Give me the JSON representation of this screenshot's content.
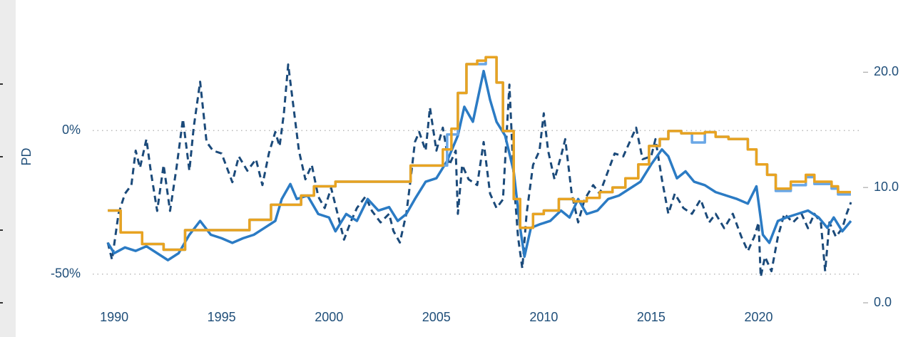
{
  "chart_data": {
    "type": "line",
    "ylabel": "PD",
    "xlim": [
      1989.0,
      2024.7
    ],
    "xticks": [
      1990,
      1995,
      2000,
      2005,
      2010,
      2015,
      2020
    ],
    "ylim": [
      -60,
      40
    ],
    "yticks": [
      {
        "value": 0,
        "label": "0%"
      },
      {
        "value": -50,
        "label": "-50%"
      }
    ],
    "y2lim": [
      0,
      24.9
    ],
    "y2ticks": [
      {
        "value": 0,
        "label": "0.0"
      },
      {
        "value": 10,
        "label": "10.0"
      },
      {
        "value": 20,
        "label": "20.0"
      }
    ],
    "grid": true,
    "series": [
      {
        "color": "#1b4a7a",
        "line_style": "dashed",
        "x": [
          1989.7,
          1989.9,
          1990.2,
          1990.5,
          1990.8,
          1991.0,
          1991.2,
          1991.5,
          1991.7,
          1992.0,
          1992.3,
          1992.6,
          1992.9,
          1993.2,
          1993.5,
          1993.7,
          1994.0,
          1994.3,
          1994.6,
          1995.0,
          1995.5,
          1995.8,
          1996.2,
          1996.6,
          1996.9,
          1997.2,
          1997.5,
          1997.7,
          1997.9,
          1998.1,
          1998.3,
          1998.6,
          1998.9,
          1999.2,
          1999.5,
          1999.8,
          2000.1,
          2000.4,
          2000.7,
          2001.0,
          2001.3,
          2001.7,
          2002.0,
          2002.4,
          2002.8,
          2003.0,
          2003.3,
          2003.6,
          2003.8,
          2004.0,
          2004.2,
          2004.5,
          2004.7,
          2005.0,
          2005.3,
          2005.6,
          2005.9,
          2006.0,
          2006.2,
          2006.5,
          2006.9,
          2007.2,
          2007.5,
          2007.8,
          2008.1,
          2008.4,
          2008.6,
          2008.8,
          2009.0,
          2009.2,
          2009.5,
          2009.8,
          2010.0,
          2010.2,
          2010.5,
          2010.8,
          2011.0,
          2011.3,
          2011.6,
          2011.9,
          2012.3,
          2012.6,
          2013.0,
          2013.3,
          2013.7,
          2014.0,
          2014.3,
          2014.6,
          2015.0,
          2015.2,
          2015.5,
          2015.8,
          2016.1,
          2016.5,
          2016.9,
          2017.3,
          2017.7,
          2018.0,
          2018.4,
          2018.8,
          2019.2,
          2019.5,
          2019.8,
          2020.0,
          2020.1,
          2020.3,
          2020.6,
          2020.9,
          2021.2,
          2021.6,
          2022.0,
          2022.3,
          2022.6,
          2022.9,
          2023.1,
          2023.3,
          2023.6,
          2023.9,
          2024.1,
          2024.3
        ],
        "values": [
          -39,
          -45,
          -29,
          -22,
          -19,
          -7,
          -13,
          -3,
          -14,
          -28,
          -12,
          -28,
          -13,
          4,
          -14,
          1,
          17,
          -4,
          -7,
          -8,
          -18,
          -9,
          -14,
          -10,
          -19,
          -8,
          -0.5,
          -5.5,
          6,
          23,
          11,
          -7,
          -17,
          -12,
          -23,
          -27,
          -20,
          -29,
          -38,
          -32,
          -27,
          -23,
          -28,
          -32,
          -29,
          -35,
          -39,
          -29,
          -17,
          -4,
          -0.5,
          -7,
          8,
          -7,
          1,
          -12,
          -7,
          -29,
          -12,
          -17,
          -19,
          -4,
          -22,
          -27,
          -24,
          16,
          -17,
          -37,
          -48,
          -29,
          -12,
          -7,
          6,
          -7,
          -17,
          -9,
          -3,
          -22,
          -32,
          -24,
          -19,
          -22,
          -14,
          -8,
          -9,
          -4,
          1,
          -10,
          -9,
          -3,
          -17,
          -29,
          -22,
          -27,
          -29,
          -24,
          -32,
          -29,
          -34,
          -29,
          -37,
          -42,
          -37,
          -32,
          -51,
          -44,
          -49,
          -37,
          -29,
          -32,
          -29,
          -34,
          -29,
          -32,
          -49,
          -32,
          -37,
          -34,
          -29,
          -25
        ]
      },
      {
        "color": "#2b7bc4",
        "axis": "y2",
        "x": [
          1989.7,
          1990.0,
          1990.5,
          1991.0,
          1991.5,
          1992.0,
          1992.5,
          1993.0,
          1993.5,
          1994.0,
          1994.5,
          1995.0,
          1995.5,
          1996.0,
          1996.5,
          1997.0,
          1997.5,
          1997.8,
          1998.2,
          1998.5,
          1999.0,
          1999.5,
          2000.0,
          2000.3,
          2000.8,
          2001.3,
          2001.8,
          2002.3,
          2002.8,
          2003.2,
          2003.6,
          2004.0,
          2004.5,
          2005.0,
          2005.5,
          2006.0,
          2006.3,
          2006.7,
          2007.2,
          2007.5,
          2007.8,
          2008.2,
          2008.6,
          2008.9,
          2009.1,
          2009.4,
          2009.8,
          2010.3,
          2010.8,
          2011.2,
          2011.6,
          2012.0,
          2012.5,
          2013.0,
          2013.5,
          2014.0,
          2014.5,
          2015.0,
          2015.5,
          2015.8,
          2016.2,
          2016.6,
          2017.0,
          2017.5,
          2018.0,
          2018.5,
          2019.0,
          2019.5,
          2019.9,
          2020.2,
          2020.5,
          2020.9,
          2021.3,
          2021.8,
          2022.3,
          2022.8,
          2023.2,
          2023.5,
          2023.9,
          2024.3
        ],
        "values": [
          5.2,
          4.3,
          4.8,
          4.5,
          4.9,
          4.3,
          3.7,
          4.3,
          5.9,
          7.1,
          5.9,
          5.6,
          5.2,
          5.6,
          5.9,
          6.5,
          7.1,
          9.0,
          10.3,
          9.0,
          9.3,
          7.7,
          7.4,
          6.2,
          7.7,
          7.1,
          9.0,
          8.0,
          8.3,
          7.1,
          7.7,
          9.0,
          10.5,
          10.8,
          12.3,
          14.5,
          17.0,
          15.7,
          20.1,
          17.6,
          15.7,
          14.5,
          11.4,
          6.5,
          4.0,
          6.5,
          6.8,
          7.1,
          8.0,
          7.4,
          9.0,
          7.7,
          8.0,
          9.0,
          9.3,
          9.9,
          10.5,
          12.0,
          13.3,
          12.7,
          10.8,
          11.4,
          10.5,
          10.2,
          9.6,
          9.3,
          9.0,
          8.6,
          10.1,
          5.9,
          5.2,
          7.1,
          7.4,
          7.7,
          8.0,
          7.4,
          6.5,
          7.4,
          6.2,
          7.1
        ]
      },
      {
        "color": "#6aa7e6",
        "axis": "y2",
        "step": true,
        "x": [
          1989.7,
          1990.3,
          1991.3,
          1992.3,
          1993.3,
          1996.3,
          1997.3,
          1998.7,
          1999.3,
          2000.3,
          2003.8,
          2005.5,
          2005.6,
          2006.0,
          2006.4,
          2007.3,
          2007.8,
          2008.1,
          2008.6,
          2008.9,
          2009.5,
          2010.0,
          2010.7,
          2011.4,
          2012.0,
          2012.6,
          2013.2,
          2013.8,
          2014.4,
          2014.9,
          2015.4,
          2015.8,
          2016.4,
          2016.9,
          2017.5,
          2018.0,
          2018.6,
          2019.5,
          2019.9,
          2020.4,
          2020.8,
          2021.5,
          2022.2,
          2022.6,
          2023.4,
          2023.7,
          2024.3
        ],
        "values": [
          8.0,
          6.1,
          5.1,
          4.6,
          6.3,
          7.2,
          8.5,
          9.3,
          10.1,
          10.5,
          11.9,
          14.6,
          14.6,
          18.2,
          20.7,
          21.3,
          19.1,
          14.9,
          9.0,
          6.5,
          7.7,
          8.0,
          9.0,
          8.8,
          9.1,
          9.6,
          10.0,
          10.8,
          12.0,
          13.6,
          14.2,
          14.9,
          14.7,
          13.9,
          14.8,
          14.4,
          14.2,
          13.3,
          12.0,
          11.1,
          9.7,
          10.2,
          10.9,
          10.3,
          9.9,
          9.4,
          9.4
        ]
      },
      {
        "color": "#e8a321",
        "axis": "y2",
        "step": true,
        "x": [
          1989.7,
          1990.3,
          1991.3,
          1992.3,
          1993.3,
          1996.3,
          1997.3,
          1998.7,
          1999.3,
          2000.3,
          2003.8,
          2004.7,
          2005.3,
          2005.7,
          2006.0,
          2006.4,
          2006.9,
          2007.3,
          2007.8,
          2008.1,
          2008.6,
          2008.9,
          2009.5,
          2010.0,
          2010.7,
          2011.4,
          2012.0,
          2012.6,
          2013.2,
          2013.8,
          2014.4,
          2014.9,
          2015.4,
          2015.8,
          2016.4,
          2017.5,
          2018.0,
          2018.6,
          2019.5,
          2019.9,
          2020.4,
          2020.8,
          2021.5,
          2022.2,
          2022.6,
          2023.4,
          2023.7,
          2024.3
        ],
        "values": [
          8.0,
          6.1,
          5.1,
          4.6,
          6.3,
          7.2,
          8.5,
          9.3,
          10.1,
          10.5,
          11.9,
          11.9,
          13.3,
          15.1,
          18.2,
          20.7,
          21.0,
          21.3,
          19.1,
          14.9,
          9.0,
          6.5,
          7.7,
          8.0,
          9.0,
          8.8,
          9.1,
          9.6,
          10.0,
          10.8,
          12.0,
          13.6,
          14.2,
          14.9,
          14.7,
          14.8,
          14.4,
          14.2,
          13.3,
          12.0,
          11.1,
          9.9,
          10.5,
          11.1,
          10.5,
          10.1,
          9.6,
          9.6
        ]
      }
    ]
  }
}
